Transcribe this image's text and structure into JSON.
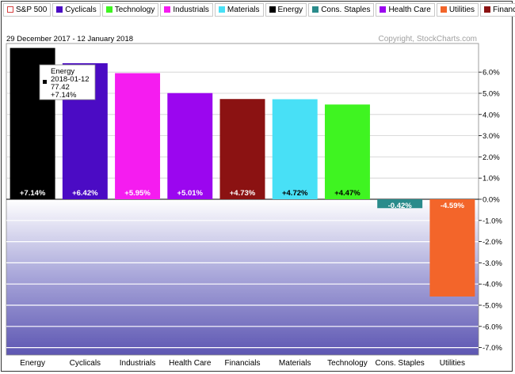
{
  "legend": [
    {
      "label": "S&P 500",
      "color": "#ffffff",
      "outline": "#d64040"
    },
    {
      "label": "Cyclicals",
      "color": "#4b0bc4"
    },
    {
      "label": "Technology",
      "color": "#3ff421"
    },
    {
      "label": "Industrials",
      "color": "#f51cf0"
    },
    {
      "label": "Materials",
      "color": "#48e0f6"
    },
    {
      "label": "Energy",
      "color": "#000000"
    },
    {
      "label": "Cons. Staples",
      "color": "#2a8b8b"
    },
    {
      "label": "Health Care",
      "color": "#9b06ef"
    },
    {
      "label": "Utilities",
      "color": "#f3652a"
    },
    {
      "label": "Financials",
      "color": "#8b1212"
    }
  ],
  "header": {
    "date_range": "29 December 2017 - 12 January 2018",
    "copyright": "Copyright, StockCharts.com"
  },
  "tooltip": {
    "name": "Energy",
    "date": "2018-01-12",
    "price": "77.42",
    "change": "+7.14%"
  },
  "chart_data": {
    "type": "bar",
    "categories": [
      "Energy",
      "Cyclicals",
      "Industrials",
      "Health Care",
      "Financials",
      "Materials",
      "Technology",
      "Cons. Staples",
      "Utilities"
    ],
    "values": [
      7.14,
      6.42,
      5.95,
      5.01,
      4.73,
      4.72,
      4.47,
      -0.42,
      -4.59
    ],
    "value_labels": [
      "+7.14%",
      "+6.42%",
      "+5.95%",
      "+5.01%",
      "+4.73%",
      "+4.72%",
      "+4.47%",
      "-0.42%",
      "-4.59%"
    ],
    "colors": [
      "#000000",
      "#4b0bc4",
      "#f51cf0",
      "#9b06ef",
      "#8b1212",
      "#48e0f6",
      "#3ff421",
      "#2a8b8b",
      "#f3652a"
    ],
    "label_colors": [
      "#ffffff",
      "#ffffff",
      "#ffffff",
      "#ffffff",
      "#ffffff",
      "#000000",
      "#000000",
      "#ffffff",
      "#ffffff"
    ],
    "yticks": [
      6,
      5,
      4,
      3,
      2,
      1,
      0,
      -1,
      -2,
      -3,
      -4,
      -5,
      -6,
      -7
    ],
    "ytick_labels": [
      "6.0%",
      "5.0%",
      "4.0%",
      "3.0%",
      "2.0%",
      "1.0%",
      "0.0%",
      "-1.0%",
      "-2.0%",
      "-3.0%",
      "-4.0%",
      "-5.0%",
      "-6.0%",
      "-7.0%"
    ],
    "ylim": [
      -7.35,
      7.35
    ],
    "grid": true,
    "legend_position": "top"
  }
}
